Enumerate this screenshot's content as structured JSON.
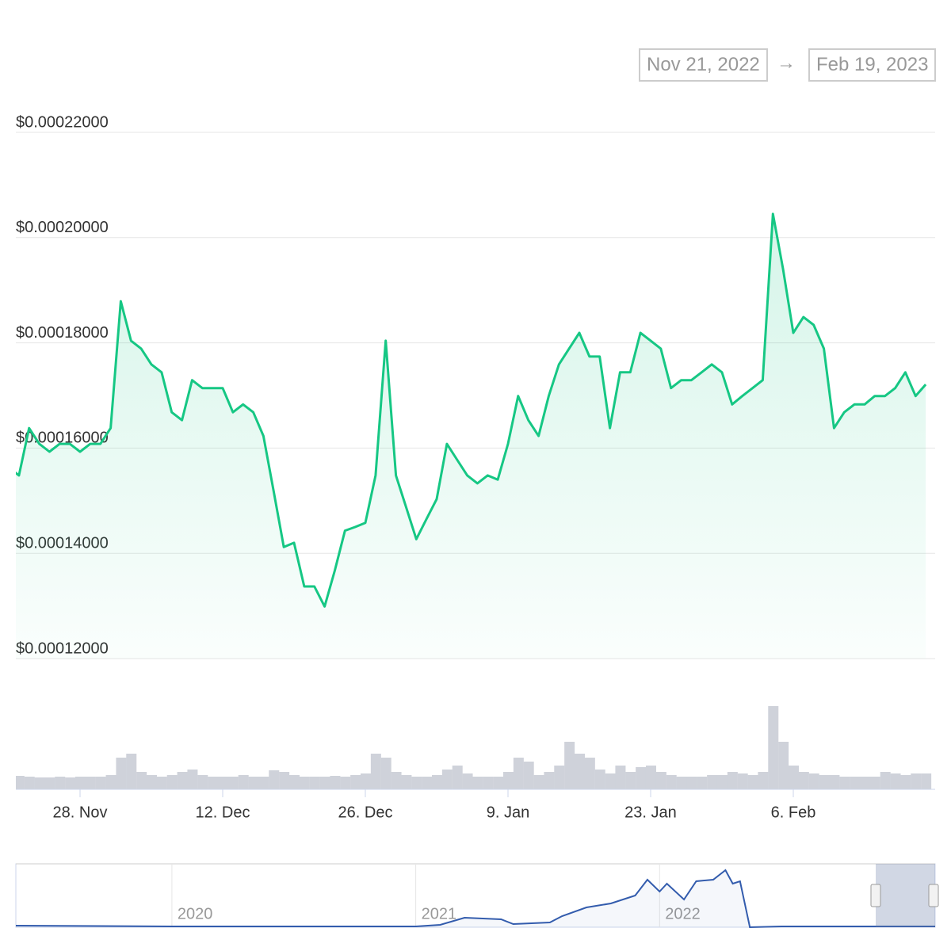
{
  "range": {
    "from": "Nov 21, 2022",
    "arrow": "→",
    "to": "Feb 19, 2023"
  },
  "chart_data": [
    {
      "type": "line",
      "color": "#16c784",
      "categories": [
        null,
        null,
        null,
        null,
        null,
        null,
        null,
        "28. Nov",
        null,
        null,
        null,
        null,
        null,
        null,
        null,
        null,
        null,
        null,
        null,
        null,
        null,
        "12. Dec",
        null,
        null,
        null,
        null,
        null,
        null,
        null,
        null,
        null,
        null,
        null,
        null,
        null,
        "26. Dec",
        null,
        null,
        null,
        null,
        null,
        null,
        null,
        null,
        null,
        null,
        null,
        null,
        null,
        "9. Jan",
        null,
        null,
        null,
        null,
        null,
        null,
        null,
        null,
        null,
        null,
        null,
        null,
        null,
        "23. Jan",
        null,
        null,
        null,
        null,
        null,
        null,
        null,
        null,
        null,
        null,
        null,
        null,
        null,
        "6. Feb",
        null,
        null,
        null,
        null,
        null,
        null,
        null,
        null,
        null,
        null,
        null,
        null,
        null
      ],
      "values": [
        0.0001563,
        0.0001548,
        0.0001638,
        0.0001608,
        0.0001593,
        0.0001608,
        0.0001608,
        0.0001593,
        0.0001608,
        0.0001608,
        0.0001638,
        0.0001879,
        0.0001804,
        0.0001789,
        0.0001759,
        0.0001744,
        0.0001668,
        0.0001653,
        0.0001729,
        0.0001714,
        0.0001714,
        0.0001714,
        0.0001668,
        0.0001683,
        0.0001668,
        0.0001623,
        0.0001518,
        0.0001412,
        0.000142,
        0.0001337,
        0.0001337,
        0.0001299,
        0.0001367,
        0.0001443,
        0.000145,
        0.0001458,
        0.0001548,
        0.0001804,
        0.0001548,
        0.0001488,
        0.0001427,
        0.0001465,
        0.0001503,
        0.0001608,
        0.0001578,
        0.0001548,
        0.0001533,
        0.0001548,
        0.000154,
        0.0001608,
        0.0001699,
        0.0001653,
        0.0001623,
        0.0001699,
        0.0001759,
        0.0001789,
        0.0001819,
        0.0001774,
        0.0001774,
        0.0001638,
        0.0001744,
        0.0001744,
        0.0001819,
        0.0001804,
        0.0001789,
        0.0001714,
        0.0001729,
        0.0001729,
        0.0001744,
        0.0001759,
        0.0001744,
        0.0001683,
        0.0001699,
        0.0001714,
        0.0001729,
        0.0002045,
        0.000194,
        0.0001819,
        0.0001849,
        0.0001834,
        0.0001789,
        0.0001638,
        0.0001668,
        0.0001683,
        0.0001683,
        0.0001699,
        0.0001699,
        0.0001714,
        0.0001744,
        0.0001699,
        0.0001721
      ],
      "ylim": [
        0.00012,
        0.00022
      ],
      "yticks": [
        {
          "value": 0.00012,
          "label": "$0.00012000"
        },
        {
          "value": 0.00014,
          "label": "$0.00014000"
        },
        {
          "value": 0.00016,
          "label": "$0.00016000"
        },
        {
          "value": 0.00018,
          "label": "$0.00018000"
        },
        {
          "value": 0.0002,
          "label": "$0.00020000"
        },
        {
          "value": 0.00022,
          "label": "$0.00022000"
        }
      ],
      "grid": true
    },
    {
      "type": "bar",
      "color": "#cfd2da",
      "values": [
        18,
        17,
        16,
        15,
        15,
        16,
        15,
        16,
        16,
        16,
        18,
        40,
        45,
        22,
        18,
        16,
        18,
        22,
        25,
        18,
        16,
        16,
        16,
        18,
        16,
        16,
        24,
        22,
        18,
        16,
        16,
        16,
        17,
        16,
        18,
        20,
        45,
        40,
        22,
        18,
        16,
        16,
        18,
        25,
        30,
        20,
        16,
        16,
        16,
        22,
        40,
        35,
        18,
        22,
        30,
        60,
        45,
        40,
        25,
        20,
        30,
        22,
        28,
        30,
        22,
        18,
        16,
        16,
        16,
        18,
        18,
        22,
        20,
        18,
        22,
        105,
        60,
        30,
        22,
        20,
        18,
        18,
        16,
        16,
        16,
        16,
        22,
        20,
        18,
        20,
        20
      ],
      "ylim": [
        0,
        110
      ]
    },
    {
      "type": "line",
      "color": "#335cad",
      "x": [
        2019.36,
        2020.0,
        2020.8,
        2021.0,
        2021.1,
        2021.2,
        2021.35,
        2021.4,
        2021.55,
        2021.6,
        2021.7,
        2021.8,
        2021.9,
        2021.95,
        2022.0,
        2022.03,
        2022.1,
        2022.15,
        2022.22,
        2022.27,
        2022.3,
        2022.33,
        2022.37,
        2022.5,
        2023.13
      ],
      "values": [
        2,
        1,
        1,
        1,
        3,
        12,
        10,
        4,
        6,
        14,
        25,
        30,
        40,
        60,
        45,
        55,
        35,
        58,
        60,
        72,
        55,
        58,
        0,
        1,
        1
      ],
      "xlim": [
        2019.36,
        2023.13
      ],
      "ylim": [
        0,
        80
      ],
      "xticks": [
        2020,
        2021,
        2022
      ]
    }
  ]
}
